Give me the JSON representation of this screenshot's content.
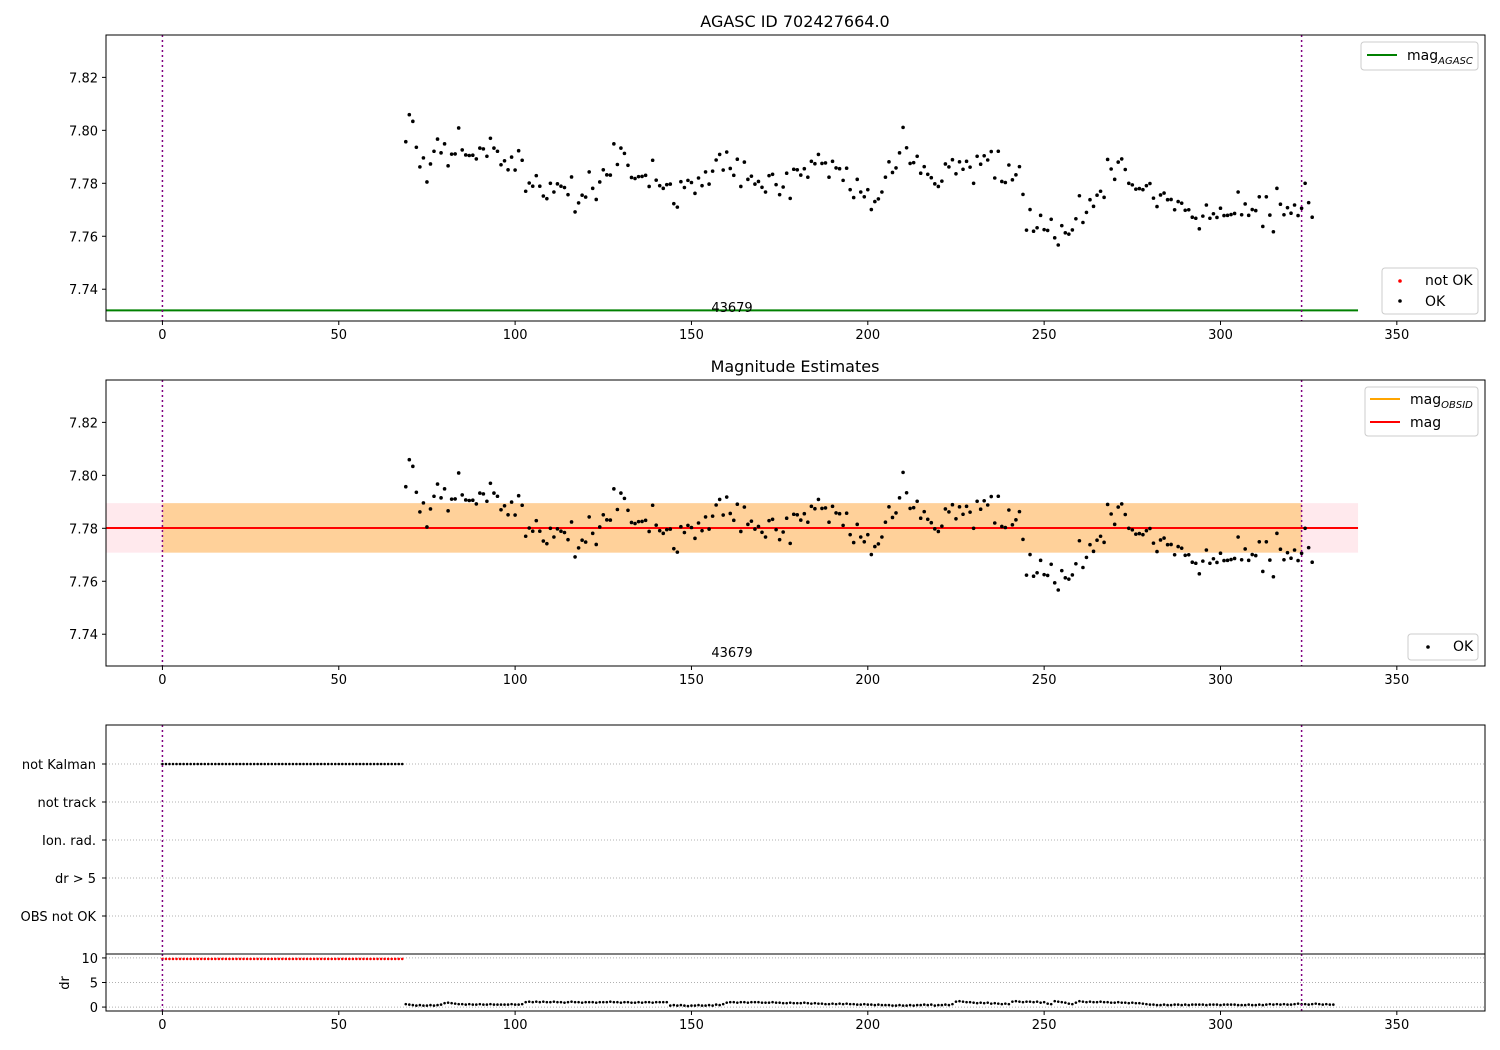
{
  "chart_data": [
    {
      "type": "scatter",
      "title": "AGASC ID 702427664.0",
      "xlim": [
        -16,
        375
      ],
      "ylim": [
        7.728,
        7.836
      ],
      "xticks": [
        "0",
        "50",
        "100",
        "150",
        "200",
        "250",
        "300",
        "350"
      ],
      "yticks": [
        "7.74",
        "7.76",
        "7.78",
        "7.80",
        "7.82"
      ],
      "obsid_label": "43679",
      "obs_boundaries": [
        0,
        323
      ],
      "series": [
        {
          "name": "mag_AGASC",
          "type": "line",
          "value": 7.732,
          "x_range": [
            -16,
            339
          ],
          "color": "#008000"
        },
        {
          "name": "not OK",
          "type": "scatter",
          "color": "#ff0000"
        },
        {
          "name": "OK",
          "type": "scatter",
          "color": "#000000"
        }
      ],
      "legend": {
        "upper": [
          {
            "label": "mag",
            "sub": "AGASC",
            "kind": "line",
            "color": "#008000"
          }
        ],
        "lower": [
          {
            "label": "not OK",
            "kind": "dot",
            "color": "#ff0000"
          },
          {
            "label": "OK",
            "kind": "dot",
            "color": "#000000"
          }
        ]
      }
    },
    {
      "type": "scatter",
      "title": "Magnitude Estimates",
      "xlim": [
        -16,
        375
      ],
      "ylim": [
        7.728,
        7.836
      ],
      "xticks": [
        "0",
        "50",
        "100",
        "150",
        "200",
        "250",
        "300",
        "350"
      ],
      "yticks": [
        "7.74",
        "7.76",
        "7.78",
        "7.80",
        "7.82"
      ],
      "obsid_label": "43679",
      "obs_boundaries": [
        0,
        323
      ],
      "bands": [
        {
          "name": "mag band",
          "x_range": [
            -16,
            339
          ],
          "y_range": [
            7.7708,
            7.7895
          ],
          "color": "#ffc0cb"
        },
        {
          "name": "mag_OBSID band",
          "x_range": [
            0,
            323
          ],
          "y_range": [
            7.7708,
            7.7895
          ],
          "color": "#ffa500"
        }
      ],
      "series": [
        {
          "name": "mag_OBSID",
          "type": "line",
          "value": 7.7801,
          "x_range": [
            0,
            323
          ],
          "color": "#ffa500"
        },
        {
          "name": "mag",
          "type": "line",
          "value": 7.7801,
          "x_range": [
            -16,
            339
          ],
          "color": "#ff0000"
        },
        {
          "name": "OK",
          "type": "scatter",
          "color": "#000000"
        }
      ],
      "legend": {
        "upper": [
          {
            "label": "mag",
            "sub": "OBSID",
            "kind": "line",
            "color": "#ffa500"
          },
          {
            "label": "mag",
            "sub": "",
            "kind": "line",
            "color": "#ff0000"
          }
        ],
        "lower": [
          {
            "label": "OK",
            "kind": "dot",
            "color": "#000000"
          }
        ]
      }
    },
    {
      "type": "scatter",
      "title": "",
      "xlim": [
        -16,
        375
      ],
      "xticks": [
        "0",
        "50",
        "100",
        "150",
        "200",
        "250",
        "300",
        "350"
      ],
      "flag_rows": [
        "not Kalman",
        "not track",
        "Ion. rad.",
        "dr > 5",
        "OBS not OK"
      ],
      "obs_boundaries": [
        0,
        323
      ],
      "flag_series": [
        {
          "row": "not Kalman",
          "x_range": [
            0,
            68
          ],
          "step": 1,
          "color": "#000000"
        }
      ]
    },
    {
      "type": "scatter",
      "title": "",
      "ylabel": "dr",
      "xlim": [
        -16,
        375
      ],
      "ylim": [
        -0.8,
        10.8
      ],
      "xticks": [
        "0",
        "50",
        "100",
        "150",
        "200",
        "250",
        "300",
        "350"
      ],
      "yticks": [
        "0",
        "5",
        "10"
      ],
      "obs_boundaries": [
        0,
        323
      ],
      "dr_series": [
        {
          "name": "not OK",
          "x_range": [
            0,
            68
          ],
          "value": 9.8,
          "color": "#ff0000"
        },
        {
          "name": "OK",
          "x_range": [
            69,
            323
          ],
          "color": "#000000"
        }
      ]
    }
  ],
  "mag_points": {
    "x_start": 69,
    "x_step": 1,
    "values": [
      7.7957,
      7.8059,
      7.8034,
      7.7936,
      7.7862,
      7.7896,
      7.7805,
      7.7873,
      7.7921,
      7.7967,
      7.7915,
      7.7949,
      7.7866,
      7.791,
      7.7911,
      7.8009,
      7.7926,
      7.7907,
      7.7905,
      7.7906,
      7.7892,
      7.7933,
      7.793,
      7.7902,
      7.797,
      7.7933,
      7.7921,
      7.787,
      7.7885,
      7.7851,
      7.7899,
      7.785,
      7.7923,
      7.7887,
      7.777,
      7.7801,
      7.7789,
      7.7829,
      7.7789,
      7.7752,
      7.7742,
      7.78,
      7.7767,
      7.7798,
      7.7789,
      7.7784,
      7.7757,
      7.7824,
      7.7692,
      7.7726,
      7.7755,
      7.7748,
      7.7843,
      7.7781,
      7.7739,
      7.7805,
      7.7851,
      7.7832,
      7.7831,
      7.7949,
      7.7871,
      7.7933,
      7.7913,
      7.7868,
      7.7822,
      7.7818,
      7.7825,
      7.7826,
      7.783,
      7.7788,
      7.7887,
      7.7812,
      7.7791,
      7.7781,
      7.7795,
      7.7797,
      7.7723,
      7.771,
      7.7806,
      7.7784,
      7.7811,
      7.7803,
      7.7762,
      7.782,
      7.7791,
      7.7843,
      7.7797,
      7.7846,
      7.7888,
      7.7909,
      7.785,
      7.7918,
      7.7856,
      7.783,
      7.7891,
      7.7788,
      7.788,
      7.7815,
      7.7827,
      7.7797,
      7.7807,
      7.7785,
      7.7767,
      7.7829,
      7.7834,
      7.7795,
      7.7757,
      7.7786,
      7.7838,
      7.7743,
      7.7853,
      7.7851,
      7.7831,
      7.7855,
      7.7823,
      7.7883,
      7.7874,
      7.7909,
      7.7875,
      7.7877,
      7.7823,
      7.7883,
      7.7858,
      7.7855,
      7.7811,
      7.7857,
      7.7776,
      7.7746,
      7.7815,
      7.7767,
      7.7749,
      7.7776,
      7.7701,
      7.7731,
      7.7741,
      7.7767,
      7.7823,
      7.7881,
      7.7841,
      7.7858,
      7.7915,
      7.8011,
      7.7934,
      7.7875,
      7.7878,
      7.7902,
      7.7838,
      7.7863,
      7.7834,
      7.7821,
      7.7798,
      7.7788,
      7.7808,
      7.7873,
      7.7862,
      7.7889,
      7.7836,
      7.7881,
      7.7853,
      7.7883,
      7.7861,
      7.78,
      7.7902,
      7.7872,
      7.7904,
      7.7888,
      7.792,
      7.782,
      7.7921,
      7.7807,
      7.7803,
      7.7869,
      7.7813,
      7.7832,
      7.7863,
      7.7758,
      7.7623,
      7.7701,
      7.7619,
      7.7632,
      7.7679,
      7.7625,
      7.7622,
      7.7664,
      7.7594,
      7.7567,
      7.764,
      7.7613,
      7.7608,
      7.7624,
      7.7666,
      7.7753,
      7.7652,
      7.769,
      7.7738,
      7.7713,
      7.7755,
      7.777,
      7.7747,
      7.789,
      7.7854,
      7.7815,
      7.788,
      7.7892,
      7.7852,
      7.78,
      7.7794,
      7.7778,
      7.778,
      7.7776,
      7.7791,
      7.7799,
      7.7744,
      7.7712,
      7.7756,
      7.7763,
      7.7738,
      7.7739,
      7.77,
      7.7731,
      7.7725,
      7.7698,
      7.77,
      7.7672,
      7.7668,
      7.7628,
      7.7676,
      7.7718,
      7.7668,
      7.7685,
      7.7671,
      7.7706,
      7.7678,
      7.7679,
      7.7682,
      7.7686,
      7.7767,
      7.7681,
      7.7722,
      7.7679,
      7.7701,
      7.7697,
      7.7749,
      7.7637,
      7.7749,
      7.768,
      7.7617,
      7.7781,
      7.7721,
      7.7681,
      7.7708,
      7.7687,
      7.7718,
      7.7678,
      7.7706,
      7.78,
      7.7727,
      7.7672
    ]
  },
  "dr_points": {
    "x_start": 69,
    "x_step": 1,
    "values": [
      0.6,
      0.5,
      0.4,
      0.3,
      0.4,
      0.3,
      0.3,
      0.4,
      0.3,
      0.4,
      0.5,
      0.8,
      0.9,
      0.8,
      0.7,
      0.6,
      0.6,
      0.5,
      0.6,
      0.5,
      0.5,
      0.6,
      0.5,
      0.5,
      0.6,
      0.5,
      0.5,
      0.5,
      0.5,
      0.5,
      0.6,
      0.5,
      0.5,
      0.6,
      1.0,
      1.1,
      1.0,
      1.1,
      1.0,
      1.1,
      1.0,
      1.0,
      1.1,
      1.0,
      1.0,
      0.9,
      1.0,
      1.1,
      1.0,
      1.0,
      0.9,
      1.0,
      1.0,
      1.0,
      0.9,
      1.0,
      1.0,
      1.0,
      1.1,
      1.0,
      1.0,
      0.9,
      1.0,
      1.0,
      0.9,
      0.9,
      1.0,
      0.9,
      1.0,
      1.0,
      0.9,
      1.0,
      1.0,
      1.0,
      1.0,
      0.3,
      0.4,
      0.3,
      0.4,
      0.3,
      0.2,
      0.3,
      0.3,
      0.4,
      0.3,
      0.3,
      0.4,
      0.3,
      0.5,
      0.4,
      0.6,
      0.9,
      1.0,
      1.0,
      0.9,
      1.0,
      1.0,
      0.9,
      1.0,
      1.0,
      1.0,
      0.9,
      0.9,
      0.9,
      1.0,
      0.9,
      0.9,
      0.8,
      0.8,
      0.9,
      0.8,
      0.8,
      0.8,
      0.9,
      0.8,
      0.7,
      0.8,
      0.7,
      0.7,
      0.6,
      0.6,
      0.7,
      0.6,
      0.7,
      0.6,
      0.7,
      0.6,
      0.6,
      0.5,
      0.5,
      0.6,
      0.5,
      0.5,
      0.4,
      0.5,
      0.4,
      0.4,
      0.4,
      0.3,
      0.3,
      0.4,
      0.3,
      0.3,
      0.4,
      0.3,
      0.4,
      0.4,
      0.5,
      0.4,
      0.5,
      0.3,
      0.4,
      0.4,
      0.5,
      0.4,
      0.6,
      1.1,
      1.2,
      1.1,
      1.0,
      1.0,
      0.9,
      0.8,
      0.9,
      0.8,
      0.9,
      0.7,
      0.8,
      0.7,
      0.6,
      0.7,
      0.6,
      1.1,
      1.2,
      1.1,
      1.0,
      1.1,
      1.1,
      1.0,
      1.1,
      0.9,
      1.0,
      0.7,
      0.6,
      1.2,
      1.1,
      1.0,
      0.9,
      0.7,
      0.6,
      0.9,
      1.2,
      1.1,
      1.0,
      1.1,
      1.0,
      1.0,
      1.1,
      1.0,
      1.0,
      0.9,
      0.9,
      1.0,
      0.9,
      0.9,
      0.8,
      0.9,
      0.8,
      0.8,
      0.7,
      0.6,
      0.5,
      0.5,
      0.4,
      0.4,
      0.5,
      0.4,
      0.4,
      0.5,
      0.5,
      0.4,
      0.5,
      0.4,
      0.5,
      0.5,
      0.5,
      0.5,
      0.4,
      0.5,
      0.5,
      0.5,
      0.4,
      0.5,
      0.5,
      0.5,
      0.5,
      0.4,
      0.4,
      0.4,
      0.5,
      0.4,
      0.4,
      0.5,
      0.4,
      0.5,
      0.6,
      0.5,
      0.6,
      0.5,
      0.6,
      0.5,
      0.5,
      0.6,
      0.7,
      0.6,
      0.6,
      0.5,
      0.6,
      0.7,
      0.6,
      0.5,
      0.6,
      0.5,
      0.5
    ]
  }
}
